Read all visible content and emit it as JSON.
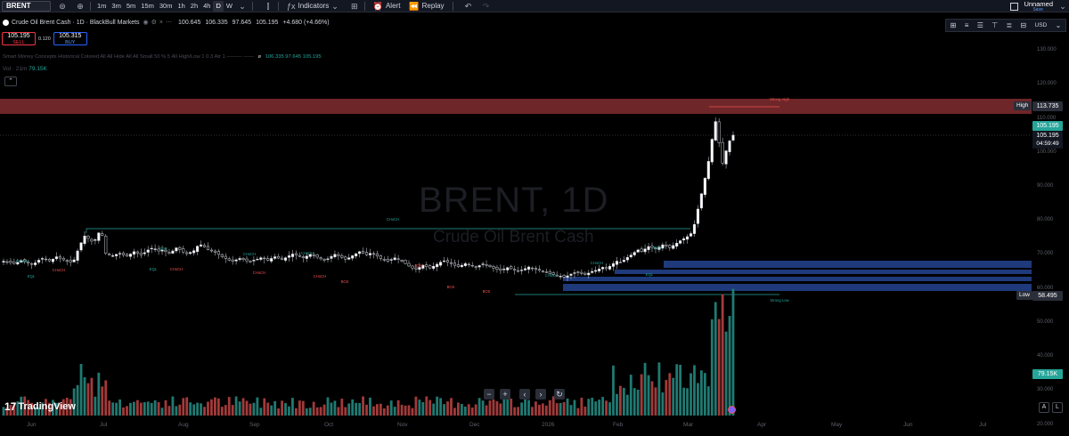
{
  "toolbar": {
    "symbol": "BRENT",
    "timeframes": [
      "1m",
      "3m",
      "5m",
      "15m",
      "30m",
      "1h",
      "2h",
      "4h",
      "D",
      "W"
    ],
    "active_timeframe": "D",
    "indicators_label": "Indicators",
    "alert_label": "Alert",
    "replay_label": "Replay",
    "layout_name": "Unnamed",
    "save_label": "Save"
  },
  "legend": {
    "name": "Crude Oil Brent Cash · 1D · BlackBull Markets",
    "open": "100.645",
    "high": "106.335",
    "low": "97.645",
    "close": "105.195",
    "change": "+4.680 (+4.66%)"
  },
  "trade": {
    "sell_price": "105.195",
    "sell_label": "SELL",
    "spread": "0.120",
    "buy_price": "105.315",
    "buy_label": "BUY"
  },
  "indicator1": {
    "name": "Smart Money Concepts Historical Colored All All Hide All All Small 50 % 5 All High/Low 1 0.3 Atr 1 ——— ——",
    "values": "106.335 97.645 105.195"
  },
  "indicator2": {
    "name": "Vol · 21m",
    "value": "79.15K"
  },
  "right_tools": {
    "currency": "USD"
  },
  "watermark": {
    "title": "BRENT, 1D",
    "subtitle": "Crude Oil Brent Cash"
  },
  "price_axis": {
    "ticks": [
      "130.000",
      "120.000",
      "110.000",
      "100.000",
      "90.000",
      "80.000",
      "70.000",
      "60.000",
      "50.000",
      "40.000",
      "30.000",
      "20.000"
    ],
    "high_tag": "High",
    "high_value": "113.735",
    "current_price": "105.195",
    "current_price_2": "105.195",
    "countdown": "04:59:49",
    "low_tag": "Low",
    "low_value": "58.495",
    "volume_value": "79.15K"
  },
  "time_axis": {
    "ticks": [
      "Jun",
      "Jul",
      "Aug",
      "Sep",
      "Oct",
      "Nov",
      "Dec",
      "2026",
      "Feb",
      "Mar",
      "Apr",
      "May",
      "Jun",
      "Jul"
    ]
  },
  "chart_labels": {
    "choch": "CHoCH",
    "bos": "BOS",
    "eqh": "EQH",
    "eql": "EQL",
    "strong_high": "Strong High",
    "weak_low": "Strong Low"
  },
  "branding": {
    "logo_text": "TradingView"
  },
  "bottom_buttons": {
    "auto": "A",
    "log": "L"
  },
  "colors": {
    "up": "#26a69a",
    "down": "#ef5350",
    "candle_up": "#ffffff",
    "candle_down": "#ffffff",
    "demand_zone": "#1e3a7b",
    "supply_zone": "#7a2a2e"
  },
  "chart_data": {
    "type": "candlestick",
    "price_range": [
      40,
      140
    ],
    "closes": [
      68.2,
      68.0,
      67.8,
      67.5,
      67.9,
      68.4,
      68.1,
      67.6,
      67.3,
      67.7,
      68.5,
      69.0,
      68.7,
      68.3,
      68.8,
      69.5,
      69.1,
      68.6,
      68.2,
      67.9,
      68.6,
      71.2,
      73.6,
      75.6,
      74.9,
      74.1,
      74.5,
      76.5,
      75.8,
      70.5,
      70.0,
      69.8,
      70.2,
      70.5,
      70.0,
      69.7,
      70.3,
      71.0,
      70.6,
      70.1,
      70.7,
      71.5,
      72.0,
      71.8,
      71.2,
      71.5,
      71.0,
      70.5,
      71.2,
      72.1,
      71.6,
      70.9,
      70.4,
      70.8,
      71.3,
      72.6,
      73.0,
      72.4,
      71.6,
      71.2,
      70.8,
      70.2,
      69.5,
      69.0,
      68.5,
      68.2,
      68.6,
      69.0,
      68.7,
      68.3,
      68.0,
      68.5,
      68.8,
      69.2,
      68.9,
      68.4,
      69.0,
      69.5,
      69.1,
      68.7,
      69.2,
      69.8,
      70.3,
      70.0,
      69.6,
      69.2,
      69.7,
      70.2,
      69.8,
      69.4,
      68.9,
      68.5,
      68.9,
      69.6,
      70.2,
      69.8,
      69.3,
      68.8,
      69.2,
      69.8,
      70.4,
      71.0,
      70.6,
      70.1,
      70.5,
      70.2,
      69.7,
      69.0,
      68.5,
      68.2,
      68.7,
      69.2,
      68.8,
      68.2,
      67.5,
      66.8,
      66.2,
      65.9,
      66.4,
      67.0,
      66.6,
      66.2,
      66.7,
      67.3,
      67.9,
      68.3,
      67.9,
      67.5,
      67.0,
      66.6,
      67.0,
      67.5,
      67.2,
      66.8,
      66.5,
      66.9,
      67.4,
      67.0,
      66.6,
      66.2,
      65.8,
      65.5,
      65.9,
      66.3,
      66.0,
      65.6,
      65.2,
      65.6,
      66.0,
      66.5,
      66.2,
      65.8,
      65.5,
      65.2,
      64.9,
      64.6,
      64.3,
      64.0,
      63.8,
      63.5,
      63.9,
      64.4,
      64.8,
      65.0,
      64.6,
      64.3,
      64.7,
      65.2,
      65.5,
      65.9,
      66.4,
      66.0,
      66.7,
      67.5,
      68.2,
      67.8,
      68.5,
      69.3,
      70.0,
      70.8,
      71.5,
      71.1,
      71.8,
      72.5,
      72.2,
      71.8,
      72.3,
      73.0,
      72.6,
      72.2,
      72.8,
      73.5,
      74.2,
      74.8,
      75.4,
      76.3,
      79.0,
      83.5,
      88.0,
      92.6,
      97.5,
      104.0,
      109.2,
      103.0,
      97.0,
      100.6,
      103.5,
      105.195
    ]
  }
}
